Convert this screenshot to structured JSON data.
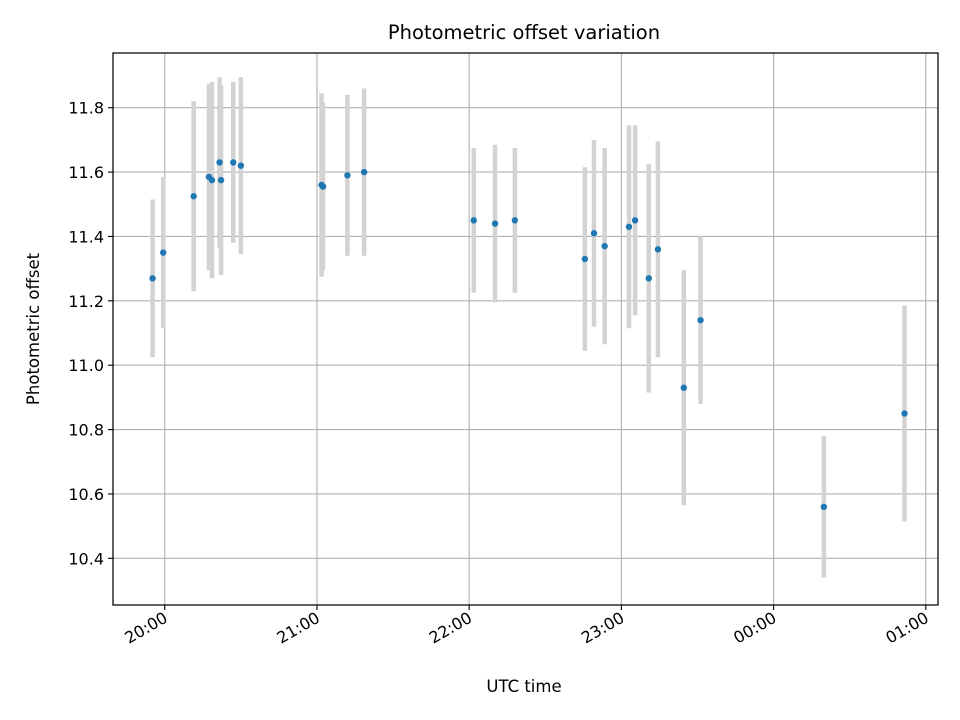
{
  "chart_data": {
    "type": "scatter",
    "title": "Photometric offset variation",
    "xlabel": "UTC time",
    "ylabel": "Photometric offset",
    "x_unit": "hours",
    "xlim": [
      19.66,
      25.08
    ],
    "ylim": [
      10.255,
      11.97
    ],
    "x_ticks": [
      {
        "value": 20,
        "label": "20:00"
      },
      {
        "value": 21,
        "label": "21:00"
      },
      {
        "value": 22,
        "label": "22:00"
      },
      {
        "value": 23,
        "label": "23:00"
      },
      {
        "value": 24,
        "label": "00:00"
      },
      {
        "value": 25,
        "label": "01:00"
      }
    ],
    "y_ticks": [
      {
        "value": 10.4,
        "label": "10.4"
      },
      {
        "value": 10.6,
        "label": "10.6"
      },
      {
        "value": 10.8,
        "label": "10.8"
      },
      {
        "value": 11.0,
        "label": "11.0"
      },
      {
        "value": 11.2,
        "label": "11.2"
      },
      {
        "value": 11.4,
        "label": "11.4"
      },
      {
        "value": 11.6,
        "label": "11.6"
      },
      {
        "value": 11.8,
        "label": "11.8"
      }
    ],
    "grid": true,
    "colors": {
      "point": "#1f77b4",
      "errorbar": "#d3d3d3",
      "grid": "#b0b0b0"
    },
    "points": [
      {
        "x": 19.92,
        "y": 11.27,
        "err": 0.245
      },
      {
        "x": 19.99,
        "y": 11.35,
        "err": 0.235
      },
      {
        "x": 20.19,
        "y": 11.525,
        "err": 0.295
      },
      {
        "x": 20.29,
        "y": 11.585,
        "err": 0.29
      },
      {
        "x": 20.31,
        "y": 11.575,
        "err": 0.305
      },
      {
        "x": 20.36,
        "y": 11.63,
        "err": 0.265
      },
      {
        "x": 20.37,
        "y": 11.575,
        "err": 0.295
      },
      {
        "x": 20.45,
        "y": 11.63,
        "err": 0.25
      },
      {
        "x": 20.5,
        "y": 11.62,
        "err": 0.275
      },
      {
        "x": 21.03,
        "y": 11.56,
        "err": 0.285
      },
      {
        "x": 21.04,
        "y": 11.555,
        "err": 0.26
      },
      {
        "x": 21.2,
        "y": 11.59,
        "err": 0.25
      },
      {
        "x": 21.31,
        "y": 11.6,
        "err": 0.26
      },
      {
        "x": 22.03,
        "y": 11.45,
        "err": 0.225
      },
      {
        "x": 22.17,
        "y": 11.44,
        "err": 0.245
      },
      {
        "x": 22.3,
        "y": 11.45,
        "err": 0.225
      },
      {
        "x": 22.76,
        "y": 11.33,
        "err": 0.285
      },
      {
        "x": 22.82,
        "y": 11.41,
        "err": 0.29
      },
      {
        "x": 22.89,
        "y": 11.37,
        "err": 0.305
      },
      {
        "x": 23.05,
        "y": 11.43,
        "err": 0.315
      },
      {
        "x": 23.09,
        "y": 11.45,
        "err": 0.295
      },
      {
        "x": 23.18,
        "y": 11.27,
        "err": 0.355
      },
      {
        "x": 23.24,
        "y": 11.36,
        "err": 0.335
      },
      {
        "x": 23.41,
        "y": 10.93,
        "err": 0.365
      },
      {
        "x": 23.52,
        "y": 11.14,
        "err": 0.26
      },
      {
        "x": 24.33,
        "y": 10.56,
        "err": 0.22
      },
      {
        "x": 24.86,
        "y": 10.85,
        "err": 0.335
      }
    ]
  }
}
